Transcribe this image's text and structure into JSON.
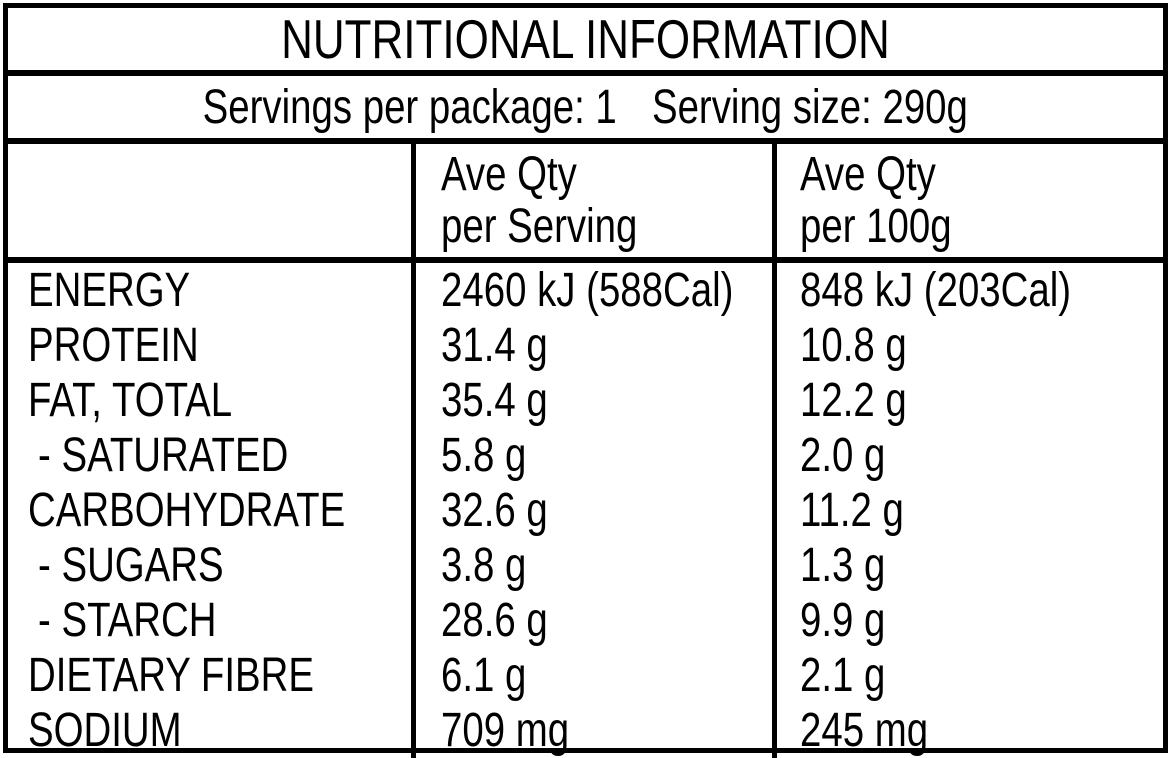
{
  "title": "NUTRITIONAL INFORMATION",
  "servings_line": {
    "servings_per_package": "Servings per package: 1",
    "serving_size": "Serving size: 290g"
  },
  "columns": [
    {
      "line1": "Ave Qty",
      "line2": "per Serving"
    },
    {
      "line1": "Ave Qty",
      "line2": "per 100g"
    }
  ],
  "rows": [
    {
      "label": "ENERGY",
      "per_serving": "2460 kJ (588Cal)",
      "per_100g": "848 kJ (203Cal)"
    },
    {
      "label": "PROTEIN",
      "per_serving": "31.4 g",
      "per_100g": "10.8 g"
    },
    {
      "label": "FAT, TOTAL",
      "per_serving": "35.4 g",
      "per_100g": "12.2 g"
    },
    {
      "label": "- SATURATED",
      "per_serving": "5.8 g",
      "per_100g": "2.0 g"
    },
    {
      "label": "CARBOHYDRATE",
      "per_serving": "32.6 g",
      "per_100g": "11.2 g"
    },
    {
      "label": "- SUGARS",
      "per_serving": "3.8 g",
      "per_100g": "1.3 g"
    },
    {
      "label": "- STARCH",
      "per_serving": "28.6 g",
      "per_100g": "9.9 g"
    },
    {
      "label": "DIETARY FIBRE",
      "per_serving": "6.1 g",
      "per_100g": "2.1 g"
    },
    {
      "label": "SODIUM",
      "per_serving": "709 mg",
      "per_100g": "245 mg"
    }
  ],
  "colors": {
    "text": "#000000",
    "background": "#ffffff",
    "border": "#000000"
  }
}
